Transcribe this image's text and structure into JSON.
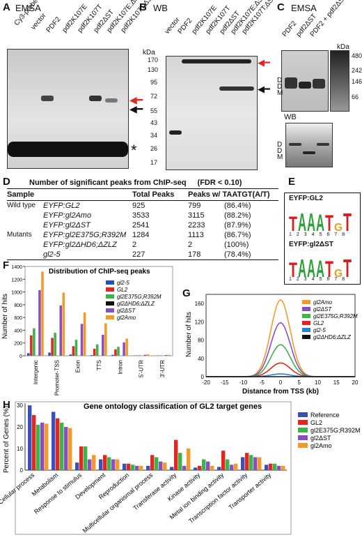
{
  "panels": {
    "A": {
      "letter": "A",
      "title": "EMSA",
      "lanes": [
        "Cy3-probe",
        "vector",
        "PDF2",
        "pdf2K107E",
        "pdf2K107T",
        "pdf2ΔST",
        "pdf2K107E;ΔST",
        "pdf2K107T;ΔST"
      ],
      "asterisk": "*"
    },
    "B": {
      "letter": "B",
      "title": "WB",
      "kda_label": "kDa",
      "markers": [
        "170",
        "130",
        "95",
        "72",
        "55",
        "43",
        "34",
        "26",
        "17"
      ],
      "lanes": [
        "vector",
        "PDF2",
        "pdf2K107E",
        "pdf2K107T",
        "pdf2ΔST",
        "pdf2K107E;ΔST",
        "pdf2K107T;ΔST"
      ]
    },
    "C": {
      "letter": "C",
      "title": "EMSA",
      "lanes": [
        "PDF2",
        "pdf2ΔST",
        "PDF2 + pdf2ΔST"
      ],
      "kda_label": "kDa",
      "markers": [
        "480",
        "242",
        "146",
        "66"
      ],
      "labels": [
        "D",
        "D",
        "M"
      ],
      "wb_label": "WB",
      "wb_labels": [
        "D",
        "D",
        "M"
      ]
    },
    "D": {
      "letter": "D",
      "title": "Number of significant peaks from ChIP-seq",
      "fdr": "(FDR < 0.10)",
      "headers": [
        "Sample",
        "Total Peaks",
        "Peaks w/ TAATGT(A/T)"
      ],
      "group_wt": "Wild type",
      "group_mut": "Mutants",
      "rows": [
        {
          "sample": "EYFP:GL2",
          "total": "925",
          "peaks": "799",
          "pct": "(86.4%)"
        },
        {
          "sample": "EYFP:gl2Amo",
          "total": "3533",
          "peaks": "3115",
          "pct": "(88.2%)"
        },
        {
          "sample": "EYFP:gl2ΔST",
          "total": "2541",
          "peaks": "2233",
          "pct": "(87.9%)"
        },
        {
          "sample": "EYFP:gl2E375G;R392M",
          "total": "1284",
          "peaks": "1113",
          "pct": "(86.7%)"
        },
        {
          "sample": "EYFP:gl2ΔHD6;ΔZLZ",
          "total": "2",
          "peaks": "2",
          "pct": "(100%)"
        },
        {
          "sample": "gl2-5",
          "total": "227",
          "peaks": "178",
          "pct": "(78.4%)"
        }
      ]
    },
    "E": {
      "letter": "E",
      "logo1": "EYFP:GL2",
      "logo2": "EYFP:gl2ΔST",
      "motif": [
        "T",
        "A",
        "A",
        "A",
        "T",
        "G",
        "T"
      ],
      "positions": [
        "1",
        "2",
        "3",
        "4",
        "5",
        "6",
        "7",
        "8"
      ]
    },
    "F": {
      "letter": "F",
      "title": "Distribution of ChIP-seq peaks",
      "ylabel": "Number of hits"
    },
    "G": {
      "letter": "G",
      "ylabel": "Number of hits",
      "xlabel": "Distance from TSS (kb)"
    },
    "H": {
      "letter": "H",
      "title": "Gene ontology classification of GL2 target genes",
      "ylabel": "Percent of Genes (%)"
    }
  },
  "chart_data": [
    {
      "type": "bar",
      "title": "Distribution of ChIP-seq peaks",
      "ylabel": "Number of hits",
      "ylim": [
        0,
        1400
      ],
      "yticks": [
        0,
        200,
        400,
        600,
        800,
        1000,
        1200,
        1400
      ],
      "categories": [
        "Intergenic",
        "Promoter-TSS",
        "Exon",
        "TTS",
        "Intron",
        "5'-UTR",
        "3'-UTR"
      ],
      "series": [
        {
          "name": "gl2-5",
          "color": "#2b4fb5",
          "values": [
            40,
            50,
            20,
            10,
            15,
            2,
            2
          ]
        },
        {
          "name": "GL2",
          "color": "#e3261f",
          "values": [
            320,
            280,
            150,
            110,
            100,
            5,
            5
          ]
        },
        {
          "name": "gl2E375G;R392M",
          "color": "#3bb54a",
          "values": [
            430,
            360,
            250,
            180,
            140,
            8,
            6
          ]
        },
        {
          "name": "gl2ΔHD6;ΔZLZ",
          "color": "#111111",
          "values": [
            2,
            1,
            0,
            0,
            0,
            0,
            0
          ]
        },
        {
          "name": "gl2ΔST",
          "color": "#8a4fbf",
          "values": [
            1030,
            790,
            500,
            330,
            210,
            15,
            12
          ]
        },
        {
          "name": "gl2Amo",
          "color": "#f39a2b",
          "values": [
            1320,
            990,
            680,
            510,
            270,
            22,
            15
          ]
        }
      ],
      "legend": "top-right"
    },
    {
      "type": "line",
      "ylabel": "Number of hits",
      "xlabel": "Distance from TSS (kb)",
      "xlim": [
        -20,
        20
      ],
      "ylim": [
        0,
        170
      ],
      "xticks": [
        -20,
        -15,
        -10,
        -5,
        0,
        5,
        10,
        15,
        20
      ],
      "yticks": [
        0,
        40,
        80,
        120,
        160
      ],
      "series": [
        {
          "name": "gl2Amo",
          "color": "#f39a2b",
          "peak": 168
        },
        {
          "name": "gl2ΔST",
          "color": "#8a4fbf",
          "peak": 118
        },
        {
          "name": "gl2E375G;R392M",
          "color": "#3bb54a",
          "peak": 70
        },
        {
          "name": "GL2",
          "color": "#e3261f",
          "peak": 30
        },
        {
          "name": "gl2-5",
          "color": "#2b7fd4",
          "peak": 6
        },
        {
          "name": "gl2ΔHD6;ΔZLZ",
          "color": "#111111",
          "peak": 0
        }
      ],
      "legend": "top-right"
    },
    {
      "type": "bar",
      "title": "Gene ontology classification of GL2 target genes",
      "ylabel": "Percent of Genes (%)",
      "ylim": [
        0,
        30
      ],
      "yticks": [
        0,
        10,
        20,
        30
      ],
      "categories": [
        "Cellular process",
        "Metabolism",
        "Response to stimulus",
        "Development",
        "Reproduction",
        "Multicellular organismal process",
        "Transferase activity",
        "Kinase activity",
        "Metal ion binding activity",
        "Transcription factor activity",
        "Transporter activity"
      ],
      "series": [
        {
          "name": "Reference",
          "color": "#3a4fb8",
          "values": [
            30,
            27,
            3.5,
            5,
            3,
            2,
            1.5,
            1.2,
            1.5,
            6,
            2.5
          ]
        },
        {
          "name": "GL2",
          "color": "#e3261f",
          "values": [
            25.5,
            24,
            11,
            7,
            3,
            7,
            14,
            2,
            9,
            8,
            3
          ]
        },
        {
          "name": "gl2E375G;R392M",
          "color": "#3bb54a",
          "values": [
            21,
            22,
            11,
            6,
            2.5,
            6,
            8,
            5,
            5,
            7,
            3
          ]
        },
        {
          "name": "gl2ΔST",
          "color": "#8a4fbf",
          "values": [
            22,
            20,
            5,
            5,
            2,
            4,
            2,
            4,
            2.5,
            6,
            2
          ]
        },
        {
          "name": "gl2Amo",
          "color": "#f39a2b",
          "values": [
            21.5,
            19.5,
            7,
            5,
            2,
            3.5,
            10,
            2,
            3,
            6,
            2
          ]
        }
      ],
      "legend": "top-right"
    }
  ]
}
